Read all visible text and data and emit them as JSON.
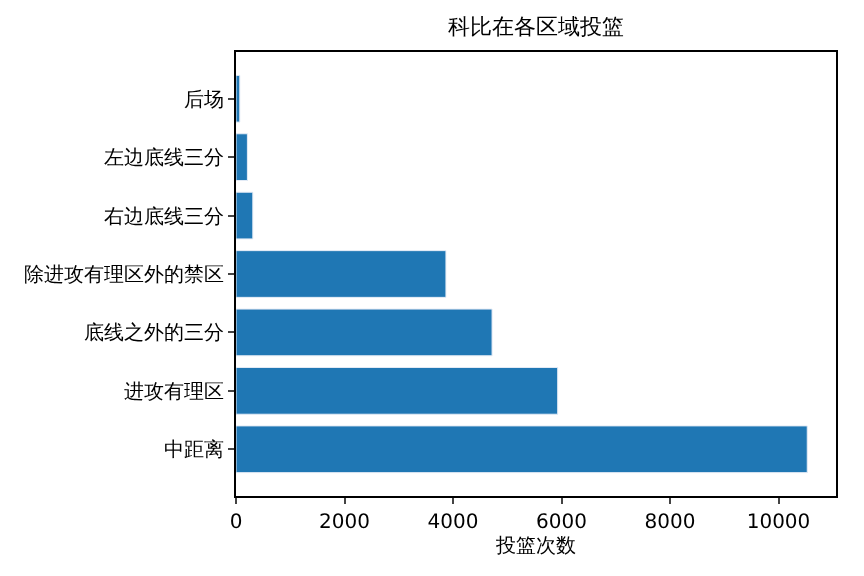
{
  "chart_data": {
    "type": "bar",
    "orientation": "horizontal",
    "title": "科比在各区域投篮",
    "xlabel": "投篮次数",
    "categories": [
      "后场",
      "左边底线三分",
      "右边底线三分",
      "除进攻有理区外的禁区",
      "底线之外的三分",
      "进攻有理区",
      "中距离"
    ],
    "values": [
      70,
      210,
      310,
      3870,
      4720,
      5930,
      10530
    ],
    "color": "#1f77b4",
    "xlim": [
      0,
      11060
    ],
    "xticks": [
      0,
      2000,
      4000,
      6000,
      8000,
      10000
    ]
  }
}
